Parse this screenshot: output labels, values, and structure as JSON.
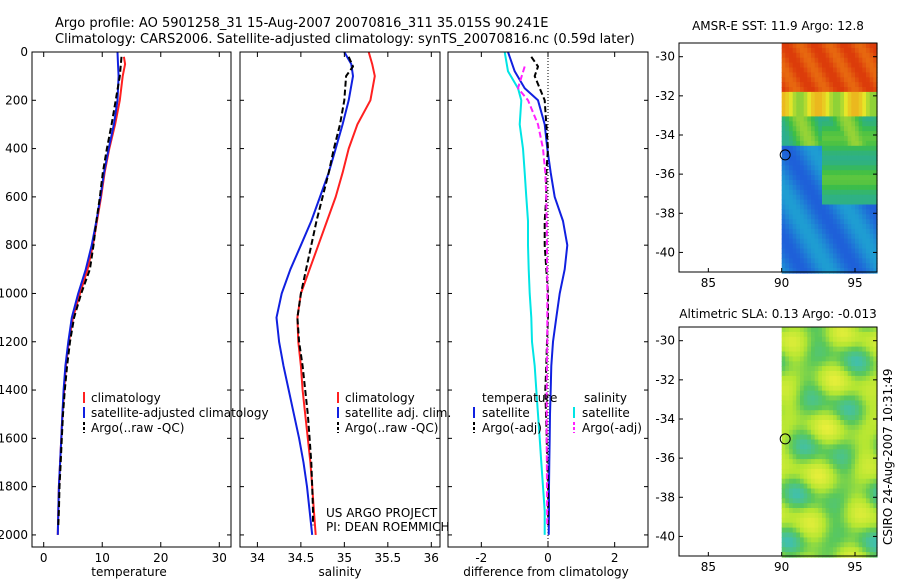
{
  "title_line1": "Argo profile: AO 5901258_31 15-Aug-2007 20070816_311 35.015S 90.241E",
  "title_line2": "Climatology: CARS2006. Satellite-adjusted climatology: synTS_20070816.nc (0.59d later)",
  "side_stamp": "CSIRO 24-Aug-2007 10:31:49",
  "project_note": [
    "US ARGO PROJECT",
    "PI: DEAN ROEMMICH"
  ],
  "colors": {
    "climatology": "#ff2020",
    "satellite": "#1020e0",
    "argo": "#000000",
    "salinity_sat": "#00e5e5",
    "salinity_argo": "#ff20ff"
  },
  "chart_data": [
    {
      "type": "line",
      "id": "temperature",
      "xlabel": "temperature",
      "xlim": [
        -2,
        32
      ],
      "xticks": [
        0,
        10,
        20,
        30
      ],
      "ylim": [
        2050,
        0
      ],
      "yticks": [
        0,
        200,
        400,
        600,
        800,
        1000,
        1200,
        1400,
        1600,
        1800,
        2000
      ],
      "legend": [
        "climatology",
        "satellite-adjusted climatology",
        "Argo(..raw -QC)"
      ],
      "series": [
        {
          "name": "climatology",
          "color": "red",
          "dashed": false,
          "points": [
            [
              13.7,
              20
            ],
            [
              13.9,
              50
            ],
            [
              13.5,
              100
            ],
            [
              13.0,
              200
            ],
            [
              12.2,
              300
            ],
            [
              11.2,
              400
            ],
            [
              10.4,
              500
            ],
            [
              9.8,
              600
            ],
            [
              9.1,
              700
            ],
            [
              8.4,
              800
            ],
            [
              7.5,
              900
            ],
            [
              6.2,
              1000
            ],
            [
              5.0,
              1100
            ],
            [
              4.3,
              1200
            ],
            [
              3.8,
              1300
            ],
            [
              3.5,
              1400
            ],
            [
              3.2,
              1500
            ],
            [
              3.0,
              1600
            ],
            [
              2.8,
              1700
            ],
            [
              2.6,
              1800
            ],
            [
              2.5,
              1900
            ],
            [
              2.4,
              2000
            ]
          ]
        },
        {
          "name": "satellite-adjusted climatology",
          "color": "blue",
          "dashed": false,
          "points": [
            [
              12.6,
              0
            ],
            [
              12.7,
              50
            ],
            [
              12.8,
              100
            ],
            [
              12.6,
              200
            ],
            [
              12.0,
              300
            ],
            [
              11.1,
              400
            ],
            [
              10.3,
              500
            ],
            [
              9.7,
              600
            ],
            [
              9.0,
              700
            ],
            [
              8.2,
              800
            ],
            [
              7.2,
              900
            ],
            [
              5.9,
              1000
            ],
            [
              4.8,
              1100
            ],
            [
              4.2,
              1200
            ],
            [
              3.7,
              1300
            ],
            [
              3.4,
              1400
            ],
            [
              3.2,
              1500
            ],
            [
              3.0,
              1600
            ],
            [
              2.8,
              1700
            ],
            [
              2.6,
              1800
            ],
            [
              2.5,
              1900
            ],
            [
              2.4,
              2000
            ]
          ]
        },
        {
          "name": "Argo(..raw -QC)",
          "color": "black",
          "dashed": true,
          "points": [
            [
              13.3,
              20
            ],
            [
              13.0,
              100
            ],
            [
              12.3,
              200
            ],
            [
              11.6,
              300
            ],
            [
              10.8,
              400
            ],
            [
              10.1,
              500
            ],
            [
              9.6,
              600
            ],
            [
              9.0,
              700
            ],
            [
              8.5,
              800
            ],
            [
              7.9,
              900
            ],
            [
              6.4,
              1000
            ],
            [
              5.2,
              1100
            ],
            [
              4.5,
              1200
            ],
            [
              4.0,
              1300
            ],
            [
              3.6,
              1400
            ],
            [
              3.3,
              1500
            ],
            [
              3.1,
              1600
            ],
            [
              2.9,
              1700
            ],
            [
              2.7,
              1800
            ],
            [
              2.6,
              1900
            ],
            [
              2.5,
              1960
            ]
          ]
        }
      ]
    },
    {
      "type": "line",
      "id": "salinity",
      "xlabel": "salinity",
      "xlim": [
        33.8,
        36.1
      ],
      "xticks": [
        34,
        34.5,
        35,
        35.5,
        36
      ],
      "ylim": [
        2050,
        0
      ],
      "legend": [
        "climatology",
        "satellite adj. clim.",
        "Argo(..raw -QC)"
      ],
      "series": [
        {
          "name": "climatology",
          "color": "red",
          "dashed": false,
          "points": [
            [
              35.28,
              0
            ],
            [
              35.32,
              50
            ],
            [
              35.35,
              100
            ],
            [
              35.3,
              200
            ],
            [
              35.15,
              300
            ],
            [
              35.05,
              400
            ],
            [
              34.98,
              500
            ],
            [
              34.9,
              600
            ],
            [
              34.8,
              700
            ],
            [
              34.7,
              800
            ],
            [
              34.6,
              900
            ],
            [
              34.5,
              1000
            ],
            [
              34.46,
              1100
            ],
            [
              34.47,
              1200
            ],
            [
              34.5,
              1300
            ],
            [
              34.52,
              1400
            ],
            [
              34.55,
              1500
            ],
            [
              34.58,
              1600
            ],
            [
              34.61,
              1700
            ],
            [
              34.63,
              1800
            ],
            [
              34.65,
              1900
            ],
            [
              34.67,
              2000
            ]
          ]
        },
        {
          "name": "satellite adj. clim.",
          "color": "blue",
          "dashed": false,
          "points": [
            [
              35.0,
              0
            ],
            [
              35.08,
              50
            ],
            [
              35.1,
              100
            ],
            [
              35.05,
              200
            ],
            [
              34.98,
              300
            ],
            [
              34.9,
              400
            ],
            [
              34.82,
              500
            ],
            [
              34.72,
              600
            ],
            [
              34.62,
              700
            ],
            [
              34.5,
              800
            ],
            [
              34.38,
              900
            ],
            [
              34.28,
              1000
            ],
            [
              34.22,
              1100
            ],
            [
              34.25,
              1200
            ],
            [
              34.3,
              1300
            ],
            [
              34.36,
              1400
            ],
            [
              34.42,
              1500
            ],
            [
              34.48,
              1600
            ],
            [
              34.53,
              1700
            ],
            [
              34.57,
              1800
            ],
            [
              34.6,
              1900
            ],
            [
              34.63,
              2000
            ]
          ]
        },
        {
          "name": "Argo(..raw -QC)",
          "color": "black",
          "dashed": true,
          "points": [
            [
              35.05,
              20
            ],
            [
              35.1,
              60
            ],
            [
              35.02,
              100
            ],
            [
              35.0,
              200
            ],
            [
              34.95,
              300
            ],
            [
              34.88,
              400
            ],
            [
              34.82,
              500
            ],
            [
              34.75,
              600
            ],
            [
              34.68,
              700
            ],
            [
              34.62,
              800
            ],
            [
              34.56,
              900
            ],
            [
              34.5,
              1000
            ],
            [
              34.46,
              1100
            ],
            [
              34.48,
              1200
            ],
            [
              34.52,
              1300
            ],
            [
              34.55,
              1400
            ],
            [
              34.58,
              1500
            ],
            [
              34.6,
              1600
            ],
            [
              34.62,
              1700
            ],
            [
              34.63,
              1800
            ],
            [
              34.64,
              1900
            ],
            [
              34.64,
              1960
            ]
          ]
        }
      ]
    },
    {
      "type": "line",
      "id": "difference",
      "xlabel": "difference from climatology",
      "xlim": [
        -3,
        3
      ],
      "xticks": [
        -2,
        0,
        2
      ],
      "ylim": [
        2050,
        0
      ],
      "legend_headers": [
        "temperature",
        "salinity"
      ],
      "legend_left": [
        "satellite",
        "Argo(-adj)"
      ],
      "legend_right": [
        "satellite",
        "Argo(-adj)"
      ],
      "series": [
        {
          "name": "temperature satellite",
          "color": "blue",
          "dashed": false,
          "points": [
            [
              -1.2,
              0
            ],
            [
              -1.0,
              80
            ],
            [
              -0.7,
              150
            ],
            [
              -0.3,
              200
            ],
            [
              -0.1,
              300
            ],
            [
              -0.02,
              400
            ],
            [
              0.08,
              500
            ],
            [
              0.2,
              600
            ],
            [
              0.45,
              700
            ],
            [
              0.58,
              800
            ],
            [
              0.5,
              900
            ],
            [
              0.35,
              1000
            ],
            [
              0.25,
              1100
            ],
            [
              0.15,
              1200
            ],
            [
              0.1,
              1300
            ],
            [
              0.08,
              1400
            ],
            [
              0.06,
              1500
            ],
            [
              0.05,
              1600
            ],
            [
              0.04,
              1700
            ],
            [
              0.03,
              1800
            ],
            [
              0.03,
              1900
            ],
            [
              0.02,
              2000
            ]
          ]
        },
        {
          "name": "temperature Argo(-adj)",
          "color": "black",
          "dashed": true,
          "points": [
            [
              -0.5,
              20
            ],
            [
              -0.3,
              60
            ],
            [
              -0.4,
              100
            ],
            [
              -0.1,
              200
            ],
            [
              -0.05,
              300
            ],
            [
              0.0,
              400
            ],
            [
              -0.05,
              500
            ],
            [
              -0.05,
              600
            ],
            [
              -0.1,
              700
            ],
            [
              -0.1,
              800
            ],
            [
              -0.05,
              900
            ],
            [
              0.0,
              1000
            ],
            [
              0.0,
              1100
            ],
            [
              -0.03,
              1200
            ],
            [
              -0.05,
              1300
            ],
            [
              -0.08,
              1400
            ],
            [
              -0.06,
              1500
            ],
            [
              -0.04,
              1600
            ],
            [
              -0.02,
              1700
            ],
            [
              0.0,
              1800
            ],
            [
              0.0,
              1900
            ],
            [
              0.0,
              1960
            ]
          ]
        },
        {
          "name": "salinity satellite",
          "color": "cyan",
          "dashed": false,
          "points": [
            [
              -1.3,
              0
            ],
            [
              -1.2,
              80
            ],
            [
              -0.9,
              150
            ],
            [
              -0.8,
              200
            ],
            [
              -0.85,
              300
            ],
            [
              -0.75,
              400
            ],
            [
              -0.7,
              500
            ],
            [
              -0.65,
              600
            ],
            [
              -0.6,
              700
            ],
            [
              -0.6,
              800
            ],
            [
              -0.58,
              900
            ],
            [
              -0.55,
              1000
            ],
            [
              -0.5,
              1100
            ],
            [
              -0.48,
              1200
            ],
            [
              -0.4,
              1300
            ],
            [
              -0.35,
              1400
            ],
            [
              -0.3,
              1500
            ],
            [
              -0.25,
              1600
            ],
            [
              -0.2,
              1700
            ],
            [
              -0.15,
              1800
            ],
            [
              -0.1,
              1900
            ],
            [
              -0.1,
              2000
            ]
          ]
        },
        {
          "name": "salinity Argo(-adj)",
          "color": "magenta",
          "dashed": true,
          "points": [
            [
              -0.7,
              60
            ],
            [
              -0.9,
              150
            ],
            [
              -0.6,
              200
            ],
            [
              -0.3,
              300
            ],
            [
              -0.15,
              400
            ],
            [
              -0.08,
              500
            ],
            [
              -0.05,
              600
            ],
            [
              -0.03,
              800
            ],
            [
              -0.02,
              1000
            ],
            [
              -0.02,
              1200
            ],
            [
              -0.04,
              1400
            ],
            [
              -0.04,
              1600
            ],
            [
              -0.03,
              1800
            ],
            [
              -0.02,
              1960
            ]
          ]
        }
      ]
    },
    {
      "type": "heatmap",
      "id": "amsr-sst",
      "title": "AMSR-E SST: 11.9 Argo: 12.8",
      "xlim": [
        83,
        96.5
      ],
      "ylim": [
        -41,
        -29.3
      ],
      "xticks": [
        85,
        90,
        95
      ],
      "yticks": [
        -30,
        -32,
        -34,
        -36,
        -38,
        -40
      ],
      "data_lon_range": [
        90,
        96.5
      ],
      "argo_marker": [
        90.241,
        -35.015
      ]
    },
    {
      "type": "heatmap",
      "id": "altimetric-sla",
      "title": "Altimetric SLA: 0.13 Argo: -0.013",
      "xlim": [
        83,
        96.5
      ],
      "ylim": [
        -41,
        -29.3
      ],
      "xticks": [
        85,
        90,
        95
      ],
      "yticks": [
        -30,
        -32,
        -34,
        -36,
        -38,
        -40
      ],
      "data_lon_range": [
        90,
        96.5
      ],
      "argo_marker": [
        90.241,
        -35.015
      ]
    }
  ]
}
